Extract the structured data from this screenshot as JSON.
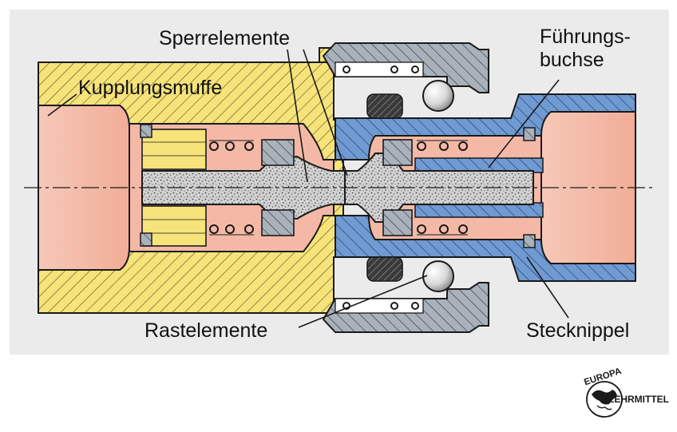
{
  "labels": {
    "sperrelemente": "Sperrelemente",
    "kupplungsmuffe": "Kupplungsmuffe",
    "fuehrungsbuchse_1": "Führungs-",
    "fuehrungsbuchse_2": "buchse",
    "rastelemente": "Rastelemente",
    "stecknippel": "Stecknippel"
  },
  "logo": {
    "top": "EUROPA",
    "right": "LEHRMITTEL"
  },
  "colors": {
    "panel": "#ebebeb",
    "coupling_sleeve_yellow": "#f6e37a",
    "nipple_blue": "#6f9ad2",
    "fluid_pink": "#f4b9a6",
    "sleeve_gray": "#a9b1ba",
    "pin_speckle": "#d2d2d2",
    "outline": "#1a1a1a"
  }
}
